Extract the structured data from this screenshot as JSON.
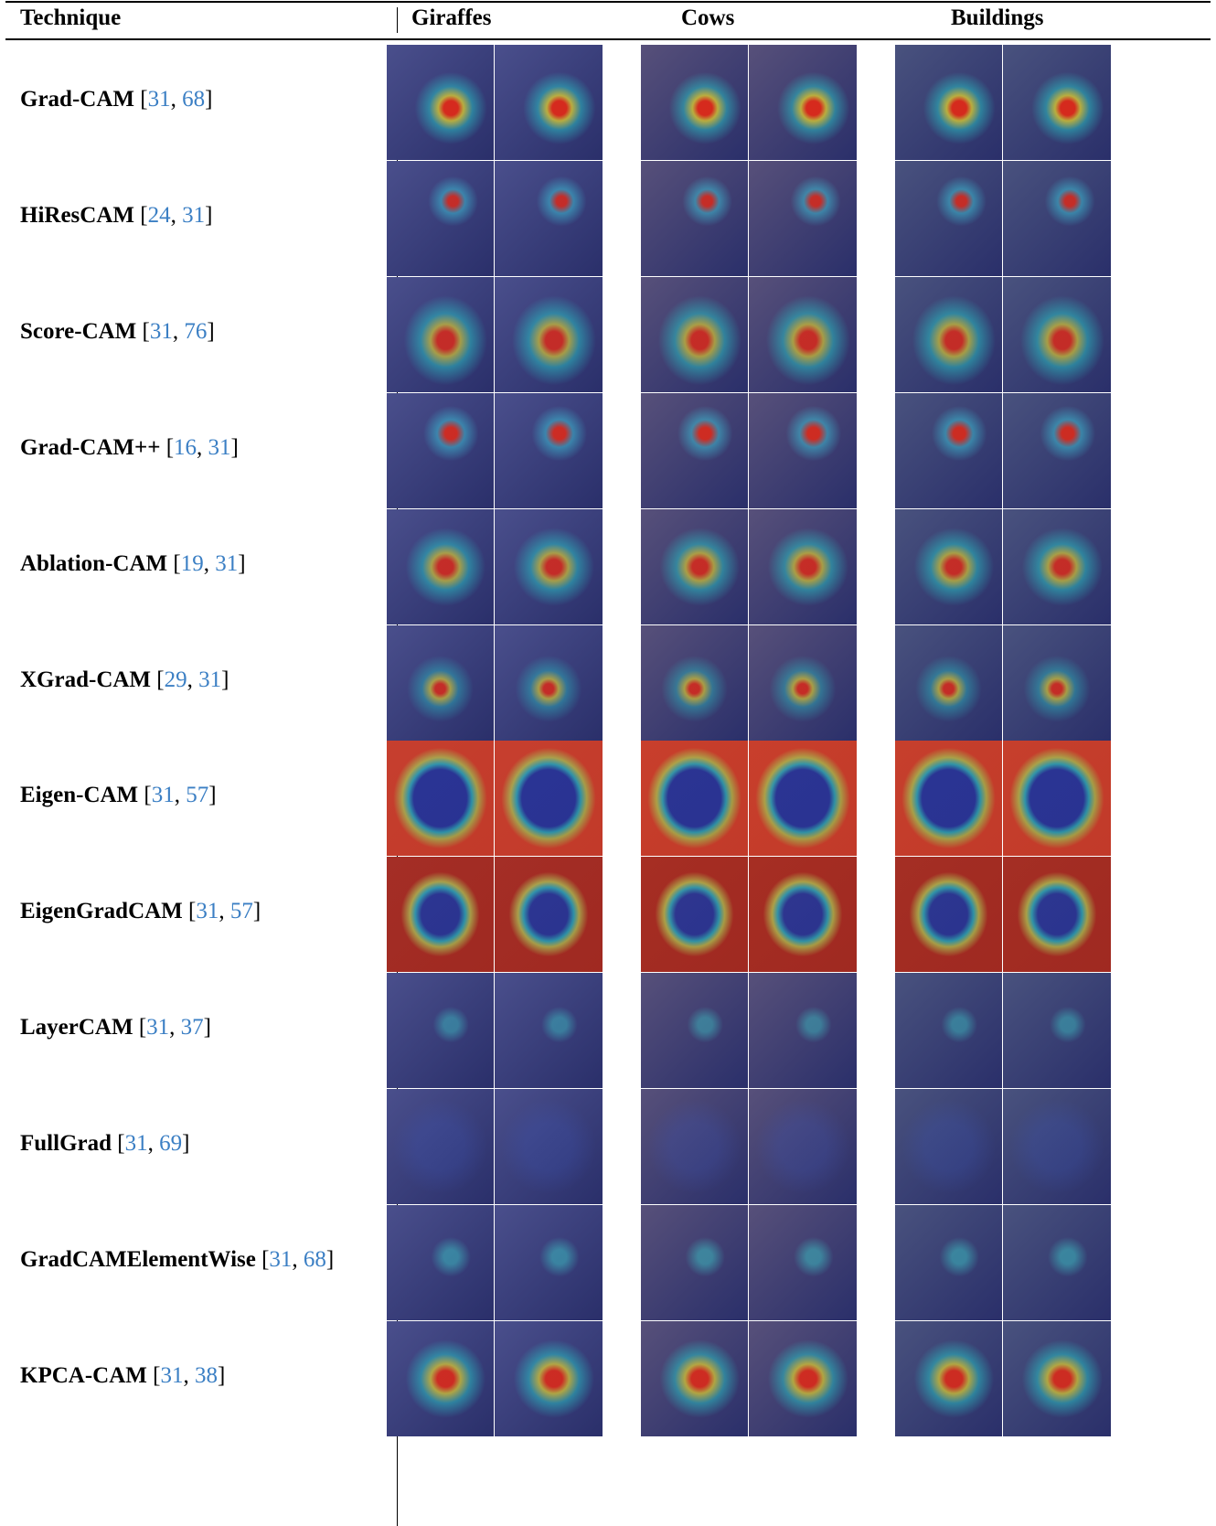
{
  "header": {
    "columns": [
      "Technique",
      "Giraffes",
      "Cows",
      "Buildings"
    ]
  },
  "table": {
    "rows": [
      {
        "technique": "Grad-CAM",
        "citation": [
          "[",
          "31",
          ", ",
          "68",
          "]"
        ]
      },
      {
        "technique": "HiResCAM",
        "citation": [
          "[",
          "24",
          ", ",
          "31",
          "]"
        ]
      },
      {
        "technique": "Score-CAM",
        "citation": [
          "[",
          "31",
          ", ",
          "76",
          "]"
        ]
      },
      {
        "technique": "Grad-CAM++",
        "citation": [
          "[",
          "16",
          ", ",
          "31",
          "]"
        ]
      },
      {
        "technique": "Ablation-CAM",
        "citation": [
          "[",
          "19",
          ", ",
          "31",
          "]"
        ]
      },
      {
        "technique": "XGrad-CAM",
        "citation": [
          "[",
          "29",
          ", ",
          "31",
          "]"
        ]
      },
      {
        "technique": "Eigen-CAM",
        "citation": [
          "[",
          "31",
          ", ",
          "57",
          "]"
        ]
      },
      {
        "technique": "EigenGradCAM",
        "citation": [
          "[",
          "31",
          ", ",
          "57",
          "]"
        ]
      },
      {
        "technique": "LayerCAM",
        "citation": [
          "[",
          "31",
          ", ",
          "37",
          "]"
        ]
      },
      {
        "technique": "FullGrad",
        "citation": [
          "[",
          "31",
          ", ",
          "69",
          "]"
        ]
      },
      {
        "technique": "GradCAMElementWise",
        "citation": [
          "[",
          "31",
          ", ",
          "68",
          "]"
        ]
      },
      {
        "technique": "KPCA-CAM",
        "citation": [
          "[",
          "31",
          ", ",
          "38",
          "]"
        ]
      }
    ]
  }
}
